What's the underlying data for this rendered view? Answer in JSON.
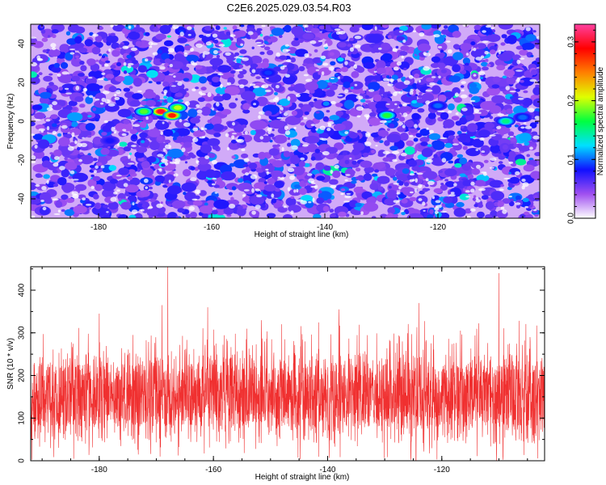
{
  "figure_title": "C2E6.2025.029.03.54.R03",
  "chart_data": [
    {
      "type": "heatmap",
      "title": "C2E6.2025.029.03.54.R03",
      "xlabel": "Height of straight line (km)",
      "ylabel": "Frequency (Hz)",
      "xlim": [
        -192,
        -102
      ],
      "ylim": [
        -50,
        50
      ],
      "x_ticks": [
        -180,
        -160,
        -140,
        -120
      ],
      "x_tick_labels": [
        "-180",
        "-160",
        "-140",
        "-120"
      ],
      "y_ticks": [
        -40,
        -20,
        0,
        20,
        40
      ],
      "y_tick_labels": [
        "-40",
        "-20",
        "0",
        "20",
        "40"
      ],
      "grid": false,
      "colorbar": {
        "label": "Normalized spectral amplitude",
        "range": [
          0,
          0.33
        ],
        "ticks": [
          0,
          0.1,
          0.2,
          0.3
        ],
        "tick_labels": [
          "0.0",
          "0.1",
          "0.2",
          "0.3"
        ],
        "colormap": [
          "#ffffff",
          "#a050f0",
          "#1010ff",
          "#00e0ff",
          "#00ff40",
          "#e0ff00",
          "#ff8000",
          "#ff0000",
          "#ff40a0"
        ]
      },
      "background_level": 0.02,
      "hotspots": [
        {
          "x": -169,
          "y": 5,
          "value": 0.3
        },
        {
          "x": -167,
          "y": 3,
          "value": 0.28
        },
        {
          "x": -172,
          "y": 5,
          "value": 0.18
        },
        {
          "x": -166,
          "y": 7,
          "value": 0.2
        },
        {
          "x": -129,
          "y": 3,
          "value": 0.17
        },
        {
          "x": -108,
          "y": 0,
          "value": 0.15
        },
        {
          "x": -105,
          "y": 2,
          "value": 0.1
        },
        {
          "x": -120,
          "y": 8,
          "value": 0.1
        },
        {
          "x": -150,
          "y": 25,
          "value": 0.09
        },
        {
          "x": -178,
          "y": -10,
          "value": 0.08
        }
      ]
    },
    {
      "type": "line",
      "xlabel": "Height of straight line (km)",
      "ylabel": "SNR (10 * v/v)",
      "xlim": [
        -192,
        -102
      ],
      "ylim": [
        0,
        455
      ],
      "x_ticks": [
        -180,
        -160,
        -140,
        -120
      ],
      "x_tick_labels": [
        "-180",
        "-160",
        "-140",
        "-120"
      ],
      "y_ticks": [
        0,
        100,
        200,
        300,
        400
      ],
      "y_tick_labels": [
        "0",
        "100",
        "200",
        "300",
        "400"
      ],
      "grid": false,
      "line_color": "#f03030",
      "sample_count": 3000,
      "typical_range": [
        40,
        250
      ],
      "peaks": [
        {
          "x": -168,
          "y": 455
        },
        {
          "x": -110,
          "y": 440
        },
        {
          "x": -169,
          "y": 365
        },
        {
          "x": -124,
          "y": 370
        },
        {
          "x": -161,
          "y": 360
        },
        {
          "x": -138,
          "y": 355
        },
        {
          "x": -180,
          "y": 345
        },
        {
          "x": -124.5,
          "y": 0
        }
      ]
    }
  ]
}
